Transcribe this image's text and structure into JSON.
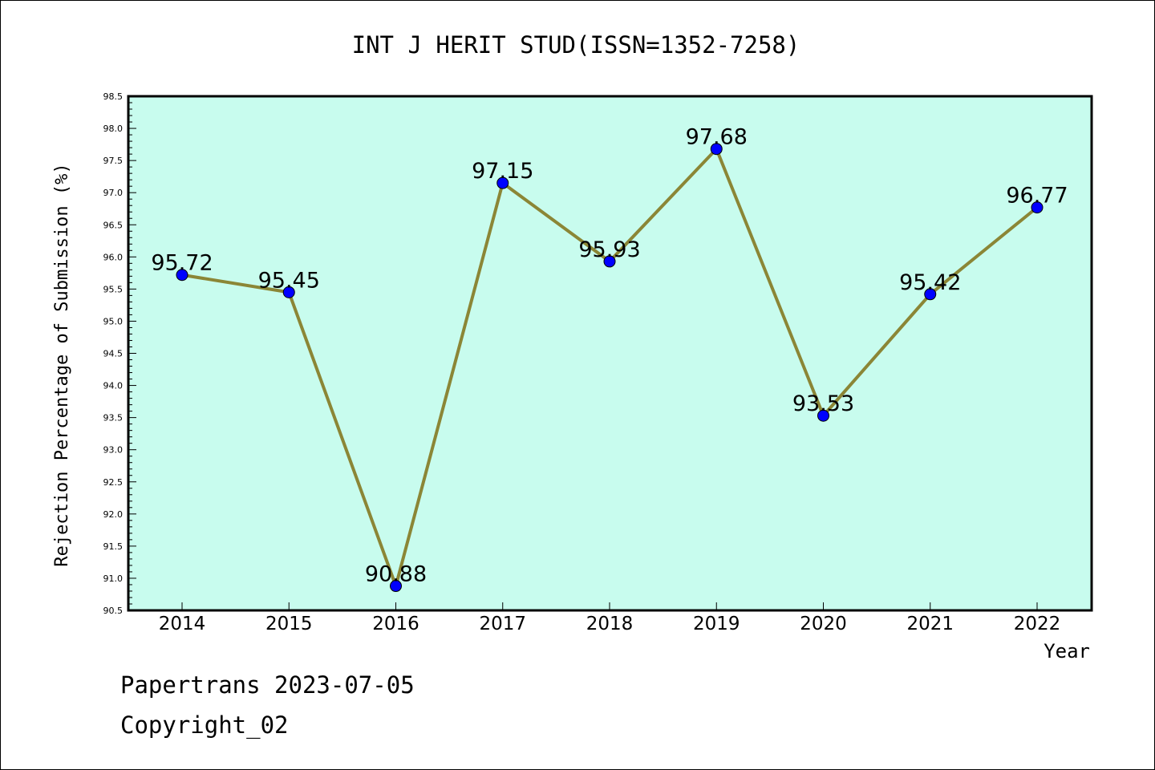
{
  "chart_data": {
    "type": "line",
    "title": "INT J HERIT STUD(ISSN=1352-7258)",
    "xlabel": "Year",
    "ylabel": "Rejection Percentage of Submission (%)",
    "x": [
      "2014",
      "2015",
      "2016",
      "2017",
      "2018",
      "2019",
      "2020",
      "2021",
      "2022"
    ],
    "values": [
      95.72,
      95.45,
      90.88,
      97.15,
      95.93,
      97.68,
      93.53,
      95.42,
      96.77
    ],
    "data_labels": [
      "95.72",
      "95.45",
      "90.88",
      "97.15",
      "95.93",
      "97.68",
      "93.53",
      "95.42",
      "96.77"
    ],
    "ylim": [
      90.5,
      98.5
    ],
    "yticks": [
      "90.5",
      "91.0",
      "91.5",
      "92.0",
      "92.5",
      "93.0",
      "93.5",
      "94.0",
      "94.5",
      "95.0",
      "95.5",
      "96.0",
      "96.5",
      "97.0",
      "97.5",
      "98.0",
      "98.5"
    ],
    "grid": false,
    "legend": "none",
    "colors": {
      "plot_background": "#c8fcee",
      "line": "#8b8636",
      "marker": "#0000ff"
    }
  },
  "footer": {
    "line1": "Papertrans 2023-07-05",
    "line2": "Copyright_02"
  }
}
